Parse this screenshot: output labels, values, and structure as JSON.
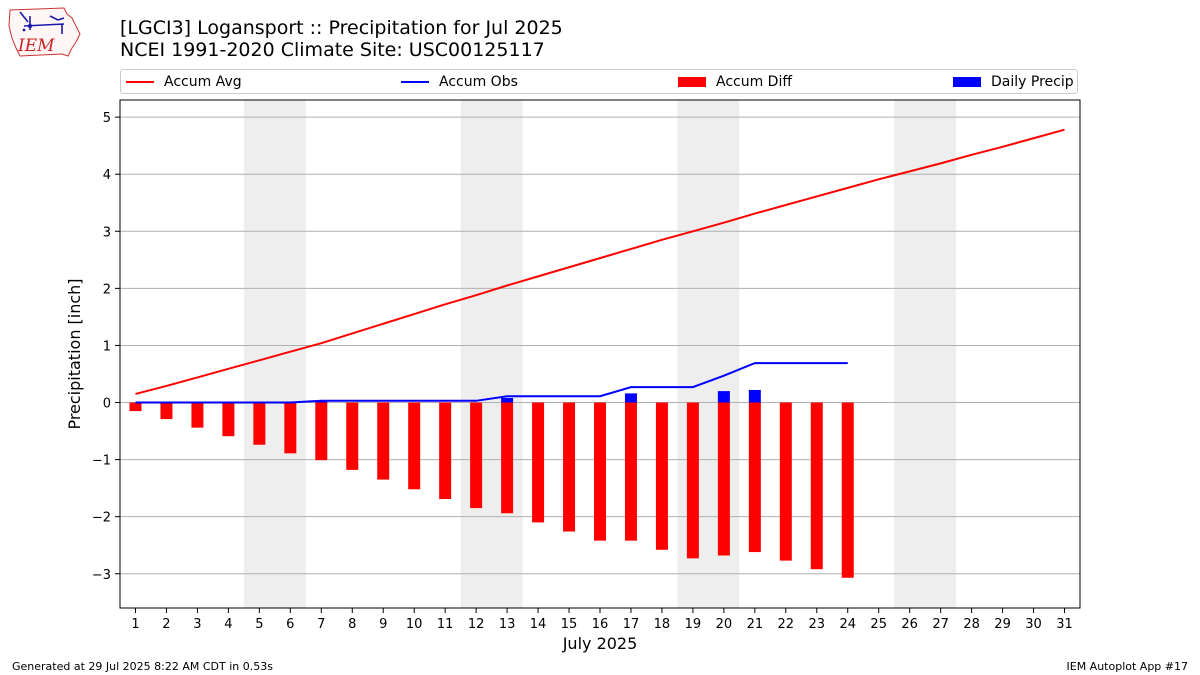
{
  "header": {
    "title_line1": "[LGCI3] Logansport :: Precipitation for Jul 2025",
    "title_line2": "NCEI 1991-2020 Climate Site: USC00125117",
    "logo_text": "IEM"
  },
  "legend": [
    {
      "label": "Accum Avg",
      "color": "#ff0000",
      "kind": "line"
    },
    {
      "label": "Accum Obs",
      "color": "#0000ff",
      "kind": "line"
    },
    {
      "label": "Accum Diff",
      "color": "#ff0000",
      "kind": "bar"
    },
    {
      "label": "Daily Precip",
      "color": "#0000ff",
      "kind": "bar"
    }
  ],
  "footer": {
    "generated": "Generated at 29 Jul 2025 8:22 AM CDT in 0.53s",
    "app": "IEM Autoplot App #17"
  },
  "chart_data": {
    "type": "bar",
    "xlabel": "July 2025",
    "ylabel": "Precipitation [inch]",
    "xlim": [
      0.5,
      31.5
    ],
    "ylim": [
      -3.6,
      5.3
    ],
    "yticks": [
      -3,
      -2,
      -1,
      0,
      1,
      2,
      3,
      4,
      5
    ],
    "ytick_labels": [
      "−3",
      "−2",
      "−1",
      "0",
      "1",
      "2",
      "3",
      "4",
      "5"
    ],
    "xticks": [
      1,
      2,
      3,
      4,
      5,
      6,
      7,
      8,
      9,
      10,
      11,
      12,
      13,
      14,
      15,
      16,
      17,
      18,
      19,
      20,
      21,
      22,
      23,
      24,
      25,
      26,
      27,
      28,
      29,
      30,
      31
    ],
    "grid": "horizontal",
    "weekend_shading": [
      [
        4.5,
        6.5
      ],
      [
        11.5,
        13.5
      ],
      [
        18.5,
        20.5
      ],
      [
        25.5,
        27.5
      ]
    ],
    "days": [
      1,
      2,
      3,
      4,
      5,
      6,
      7,
      8,
      9,
      10,
      11,
      12,
      13,
      14,
      15,
      16,
      17,
      18,
      19,
      20,
      21,
      22,
      23,
      24,
      25,
      26,
      27,
      28,
      29,
      30,
      31
    ],
    "accum_avg": [
      0.15,
      0.29,
      0.44,
      0.59,
      0.74,
      0.89,
      1.04,
      1.21,
      1.38,
      1.55,
      1.72,
      1.88,
      2.05,
      2.21,
      2.37,
      2.53,
      2.69,
      2.85,
      3.0,
      3.15,
      3.31,
      3.46,
      3.61,
      3.76,
      3.91,
      4.05,
      4.19,
      4.34,
      4.48,
      4.63,
      4.78
    ],
    "obs_days": [
      1,
      2,
      3,
      4,
      5,
      6,
      7,
      8,
      9,
      10,
      11,
      12,
      13,
      14,
      15,
      16,
      17,
      18,
      19,
      20,
      21,
      22,
      23,
      24
    ],
    "accum_obs": [
      0.0,
      0.0,
      0.0,
      0.0,
      0.0,
      0.0,
      0.03,
      0.03,
      0.03,
      0.03,
      0.03,
      0.03,
      0.11,
      0.11,
      0.11,
      0.11,
      0.27,
      0.27,
      0.27,
      0.47,
      0.69,
      0.69,
      0.69,
      0.69
    ],
    "accum_diff": [
      -0.15,
      -0.29,
      -0.44,
      -0.59,
      -0.74,
      -0.89,
      -1.01,
      -1.18,
      -1.35,
      -1.52,
      -1.69,
      -1.85,
      -1.94,
      -2.1,
      -2.26,
      -2.42,
      -2.42,
      -2.58,
      -2.73,
      -2.68,
      -2.62,
      -2.77,
      -2.92,
      -3.07
    ],
    "daily_precip": [
      0.0,
      0.0,
      0.0,
      0.0,
      0.0,
      0.0,
      0.03,
      0.0,
      0.0,
      0.0,
      0.0,
      0.0,
      0.08,
      0.0,
      0.0,
      0.0,
      0.16,
      0.0,
      0.0,
      0.2,
      0.22,
      0.0,
      0.0,
      0.0
    ],
    "colors": {
      "accum_avg": "#ff0000",
      "accum_obs": "#0000ff",
      "accum_diff": "#ff0000",
      "daily_precip": "#0000ff",
      "weekend": "#eeeeee",
      "grid": "#b0b0b0"
    }
  }
}
